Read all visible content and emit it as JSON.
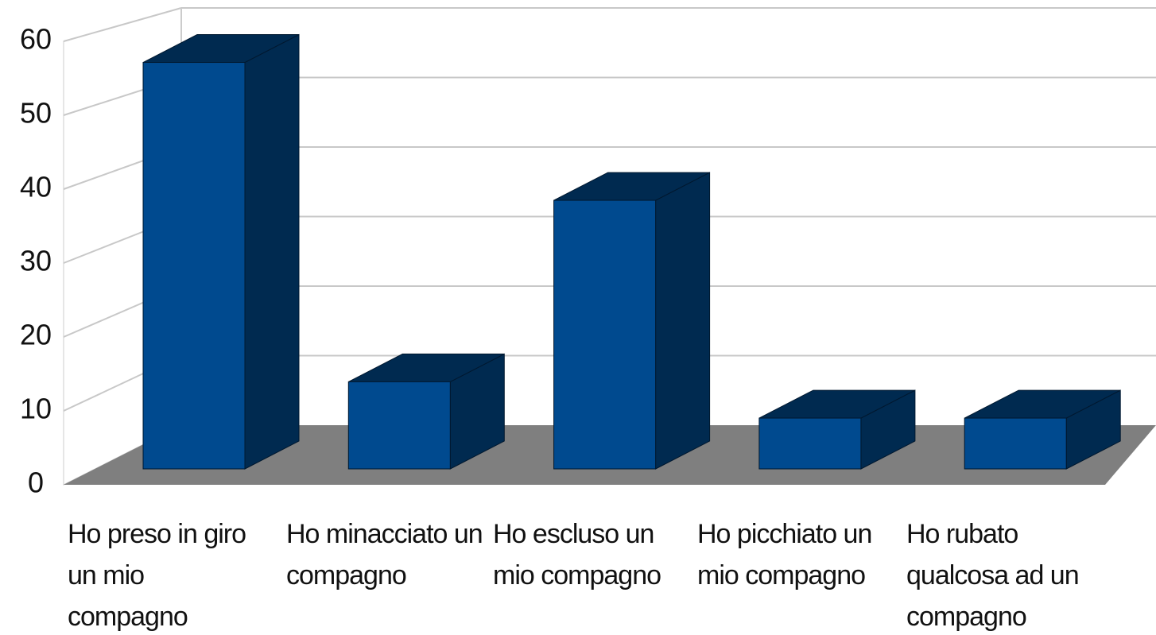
{
  "chart_data": {
    "type": "bar3d",
    "categories": [
      "Ho preso in giro un mio compagno",
      "Ho minacciato un compagno",
      "Ho escluso un mio compagno",
      "Ho picchiato un mio compagno",
      "Ho rubato qualcosa ad un compagno"
    ],
    "values": [
      56,
      12,
      37,
      7,
      7
    ],
    "color": "#004a8f",
    "ylim": [
      0,
      60
    ],
    "yticks": [
      0,
      10,
      20,
      30,
      40,
      50,
      60
    ],
    "grid": true
  }
}
